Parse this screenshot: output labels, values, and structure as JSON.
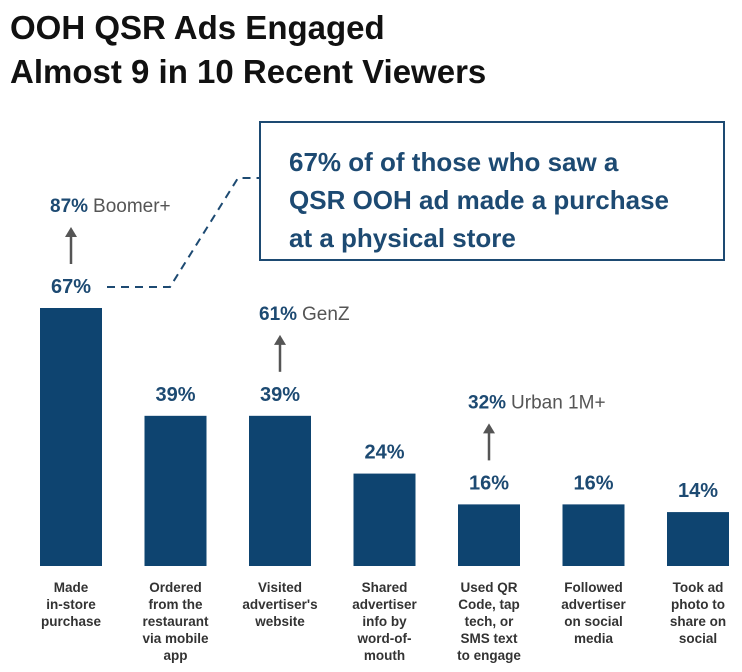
{
  "title_line1": "OOH QSR Ads Engaged",
  "title_line2": "Almost 9 in 10 Recent Viewers",
  "callout": {
    "line1": "67% of of those who saw a",
    "line2": "QSR OOH ad made a purchase",
    "line3": "at a physical store"
  },
  "colors": {
    "bar": "#0e4470",
    "accent": "#1d4a72",
    "arrow": "#555555"
  },
  "chart_data": {
    "type": "bar",
    "categories": [
      [
        "Made",
        "in-store",
        "purchase"
      ],
      [
        "Ordered",
        "from the",
        "restaurant",
        "via mobile",
        "app"
      ],
      [
        "Visited",
        "advertiser's",
        "website"
      ],
      [
        "Shared",
        "advertiser",
        "info by",
        "word-of-",
        "mouth"
      ],
      [
        "Used QR",
        "Code, tap",
        "tech, or",
        "SMS text",
        "to engage"
      ],
      [
        "Followed",
        "advertiser",
        "on social",
        "media"
      ],
      [
        "Took ad",
        "photo to",
        "share on",
        "social"
      ]
    ],
    "values": [
      67,
      39,
      39,
      24,
      16,
      16,
      14
    ],
    "value_labels": [
      "67%",
      "39%",
      "39%",
      "24%",
      "16%",
      "16%",
      "14%"
    ],
    "ylim": [
      0,
      67
    ],
    "grid": false,
    "annotations": [
      {
        "bar_index": 0,
        "value": "87%",
        "label": "Boomer+"
      },
      {
        "bar_index": 2,
        "value": "61%",
        "label": "GenZ"
      },
      {
        "bar_index": 4,
        "value": "32%",
        "label": "Urban 1M+"
      }
    ]
  }
}
